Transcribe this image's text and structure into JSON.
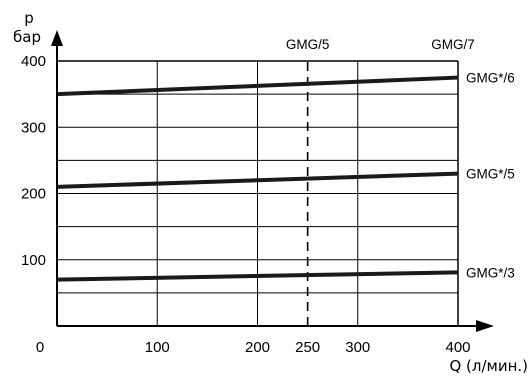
{
  "chart_data": {
    "type": "line",
    "title": "",
    "xlabel": "Q (л/мин.)",
    "ylabel_top": "p",
    "ylabel_bottom": "бар",
    "origin_label": "0",
    "xlim": [
      0,
      400
    ],
    "ylim": [
      0,
      400
    ],
    "x_ticks": [
      {
        "value": 100,
        "label": "100"
      },
      {
        "value": 200,
        "label": "200"
      },
      {
        "value": 250,
        "label": "250"
      },
      {
        "value": 300,
        "label": "300"
      },
      {
        "value": 400,
        "label": "400"
      }
    ],
    "y_ticks": [
      {
        "value": 100,
        "label": "100"
      },
      {
        "value": 200,
        "label": "200"
      },
      {
        "value": 300,
        "label": "300"
      },
      {
        "value": 400,
        "label": "400"
      }
    ],
    "x_grid": [
      100,
      200,
      250,
      300
    ],
    "y_grid": [
      50,
      100,
      150,
      200,
      250,
      300,
      350
    ],
    "grid": true,
    "series": [
      {
        "name": "GMG*/6",
        "x": [
          0,
          400
        ],
        "values": [
          350,
          375
        ]
      },
      {
        "name": "GMG*/5",
        "x": [
          0,
          400
        ],
        "values": [
          210,
          230
        ]
      },
      {
        "name": "GMG*/3",
        "x": [
          0,
          400
        ],
        "values": [
          70,
          81
        ]
      }
    ],
    "reference_line": {
      "x": 250,
      "style": "dashed",
      "label": "GMG/5"
    },
    "annotations": [
      {
        "label": "GMG/7",
        "x": 400
      }
    ]
  }
}
